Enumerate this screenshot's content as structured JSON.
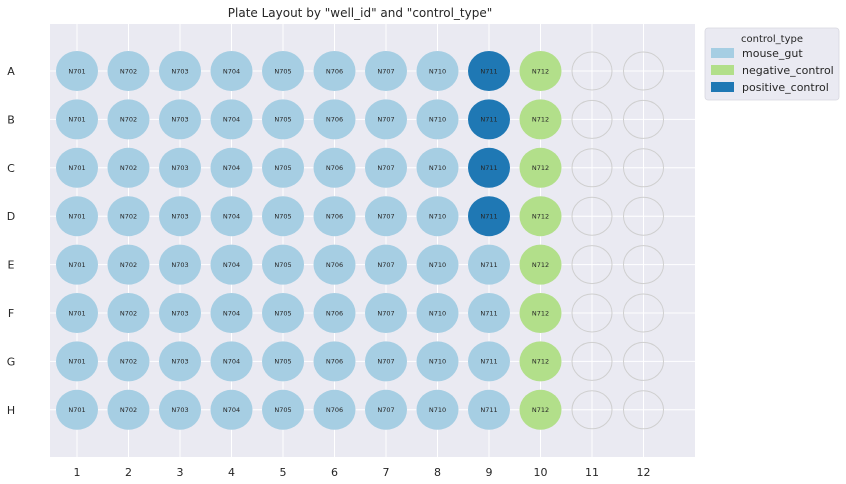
{
  "chart_data": {
    "type": "plate",
    "title": "Plate Layout by \"well_id\" and \"control_type\"",
    "rows": [
      "A",
      "B",
      "C",
      "D",
      "E",
      "F",
      "G",
      "H"
    ],
    "columns": [
      "1",
      "2",
      "3",
      "4",
      "5",
      "6",
      "7",
      "8",
      "9",
      "10",
      "11",
      "12"
    ],
    "column_labels": [
      "N701",
      "N702",
      "N703",
      "N704",
      "N705",
      "N706",
      "N707",
      "N710",
      "N711",
      "N712",
      "",
      ""
    ],
    "wells": [
      [
        "mouse_gut",
        "mouse_gut",
        "mouse_gut",
        "mouse_gut",
        "mouse_gut",
        "mouse_gut",
        "mouse_gut",
        "mouse_gut",
        "positive_control",
        "negative_control",
        null,
        null
      ],
      [
        "mouse_gut",
        "mouse_gut",
        "mouse_gut",
        "mouse_gut",
        "mouse_gut",
        "mouse_gut",
        "mouse_gut",
        "mouse_gut",
        "positive_control",
        "negative_control",
        null,
        null
      ],
      [
        "mouse_gut",
        "mouse_gut",
        "mouse_gut",
        "mouse_gut",
        "mouse_gut",
        "mouse_gut",
        "mouse_gut",
        "mouse_gut",
        "positive_control",
        "negative_control",
        null,
        null
      ],
      [
        "mouse_gut",
        "mouse_gut",
        "mouse_gut",
        "mouse_gut",
        "mouse_gut",
        "mouse_gut",
        "mouse_gut",
        "mouse_gut",
        "positive_control",
        "negative_control",
        null,
        null
      ],
      [
        "mouse_gut",
        "mouse_gut",
        "mouse_gut",
        "mouse_gut",
        "mouse_gut",
        "mouse_gut",
        "mouse_gut",
        "mouse_gut",
        "mouse_gut",
        "negative_control",
        null,
        null
      ],
      [
        "mouse_gut",
        "mouse_gut",
        "mouse_gut",
        "mouse_gut",
        "mouse_gut",
        "mouse_gut",
        "mouse_gut",
        "mouse_gut",
        "mouse_gut",
        "negative_control",
        null,
        null
      ],
      [
        "mouse_gut",
        "mouse_gut",
        "mouse_gut",
        "mouse_gut",
        "mouse_gut",
        "mouse_gut",
        "mouse_gut",
        "mouse_gut",
        "mouse_gut",
        "negative_control",
        null,
        null
      ],
      [
        "mouse_gut",
        "mouse_gut",
        "mouse_gut",
        "mouse_gut",
        "mouse_gut",
        "mouse_gut",
        "mouse_gut",
        "mouse_gut",
        "mouse_gut",
        "negative_control",
        null,
        null
      ]
    ],
    "legend": {
      "title": "control_type",
      "placement": "outside-top-right",
      "entries": [
        {
          "label": "mouse_gut",
          "color": "#a6cee3"
        },
        {
          "label": "negative_control",
          "color": "#b2df8a"
        },
        {
          "label": "positive_control",
          "color": "#1f78b4"
        }
      ]
    },
    "colors": {
      "background": "#eaeaf2",
      "grid": "#ffffff",
      "empty_well_stroke": "#cfcfcf"
    },
    "grid": true
  }
}
